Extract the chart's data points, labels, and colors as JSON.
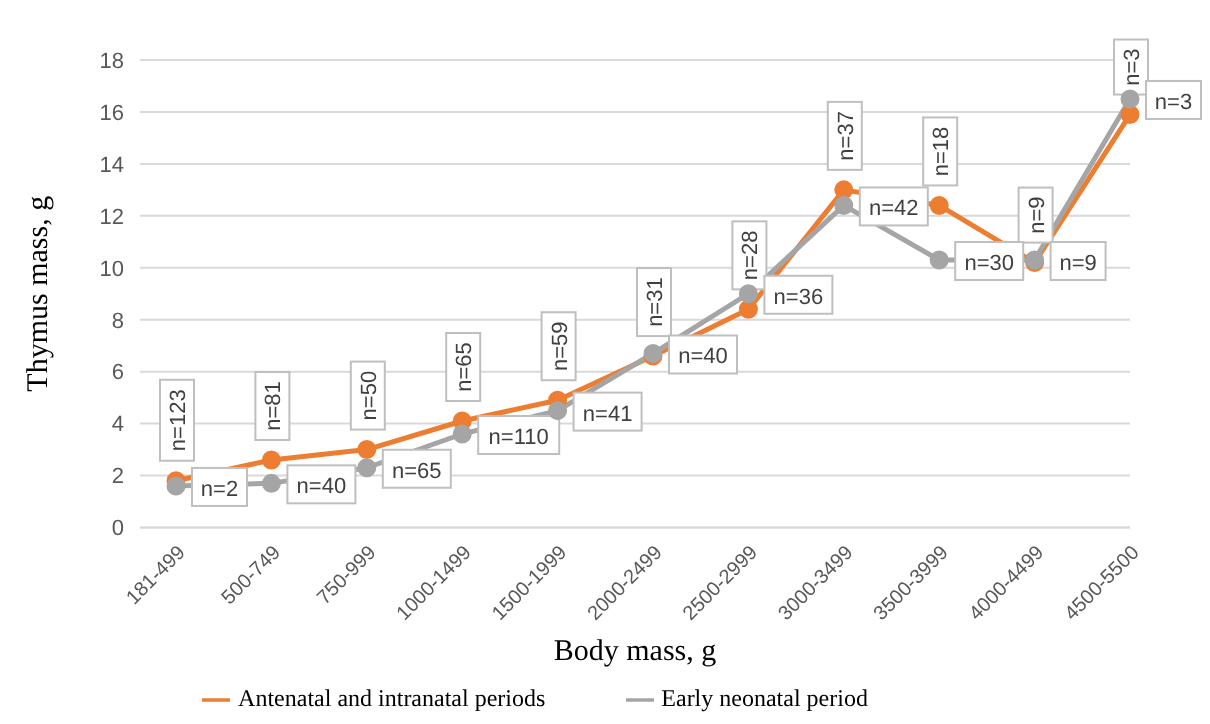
{
  "chart_data": {
    "type": "line",
    "xlabel": "Body mass, g",
    "ylabel": "Thymus mass, g",
    "categories": [
      "181-499",
      "500-749",
      "750-999",
      "1000-1499",
      "1500-1999",
      "2000-2499",
      "2500-2999",
      "3000-3499",
      "3500-3999",
      "4000-4499",
      "4500-5500"
    ],
    "series": [
      {
        "name": "Antenatal and intranatal periods",
        "color": "#ed7d31",
        "values": [
          1.8,
          2.6,
          3.0,
          4.1,
          4.9,
          6.6,
          8.4,
          13.0,
          12.4,
          10.2,
          15.9
        ]
      },
      {
        "name": "Early neonatal period",
        "color": "#a5a5a5",
        "values": [
          1.6,
          1.7,
          2.3,
          3.6,
          4.5,
          6.7,
          9.0,
          12.4,
          10.3,
          10.3,
          16.5
        ]
      }
    ],
    "annotations": [
      {
        "text": "n=123",
        "x": "181-499",
        "y": 1.8
      },
      {
        "text": "n=81",
        "x": "500-749",
        "y": 2.6
      },
      {
        "text": "n=50",
        "x": "750-999",
        "y": 3.0
      },
      {
        "text": "n=65",
        "x": "1000-1499",
        "y": 4.1
      },
      {
        "text": "n=59",
        "x": "1500-1999",
        "y": 4.9
      },
      {
        "text": "n=31",
        "x": "2000-2499",
        "y": 6.6
      },
      {
        "text": "n=28",
        "x": "2500-2999",
        "y": 8.4
      },
      {
        "text": "n=37",
        "x": "3000-3499",
        "y": 13.0
      },
      {
        "text": "n=18",
        "x": "3500-3999",
        "y": 12.4
      },
      {
        "text": "n=9",
        "x": "4000-4499",
        "y": 10.2
      },
      {
        "text": "n=3",
        "x": "4500-5500",
        "y": 15.9
      },
      {
        "text": "n=2",
        "x": "181-499",
        "y": 1.6
      },
      {
        "text": "n=40",
        "x": "500-749",
        "y": 1.7
      },
      {
        "text": "n=65",
        "x": "750-999",
        "y": 2.3
      },
      {
        "text": "n=110",
        "x": "1000-1499",
        "y": 3.6
      },
      {
        "text": "n=41",
        "x": "1500-1999",
        "y": 4.5
      },
      {
        "text": "n=40",
        "x": "2000-2499",
        "y": 6.7
      },
      {
        "text": "n=36",
        "x": "2500-2999",
        "y": 9.0
      },
      {
        "text": "n=42",
        "x": "3000-3499",
        "y": 12.4
      },
      {
        "text": "n=30",
        "x": "3500-3999",
        "y": 10.3
      },
      {
        "text": "n=9",
        "x": "4000-4499",
        "y": 10.3
      },
      {
        "text": "n=3",
        "x": "4500-5500",
        "y": 16.5
      }
    ],
    "ylim": [
      0,
      18
    ],
    "yticks": [
      0,
      2,
      4,
      6,
      8,
      10,
      12,
      14,
      16,
      18
    ],
    "grid": "y",
    "legend": "bottom",
    "marker": "circle"
  }
}
